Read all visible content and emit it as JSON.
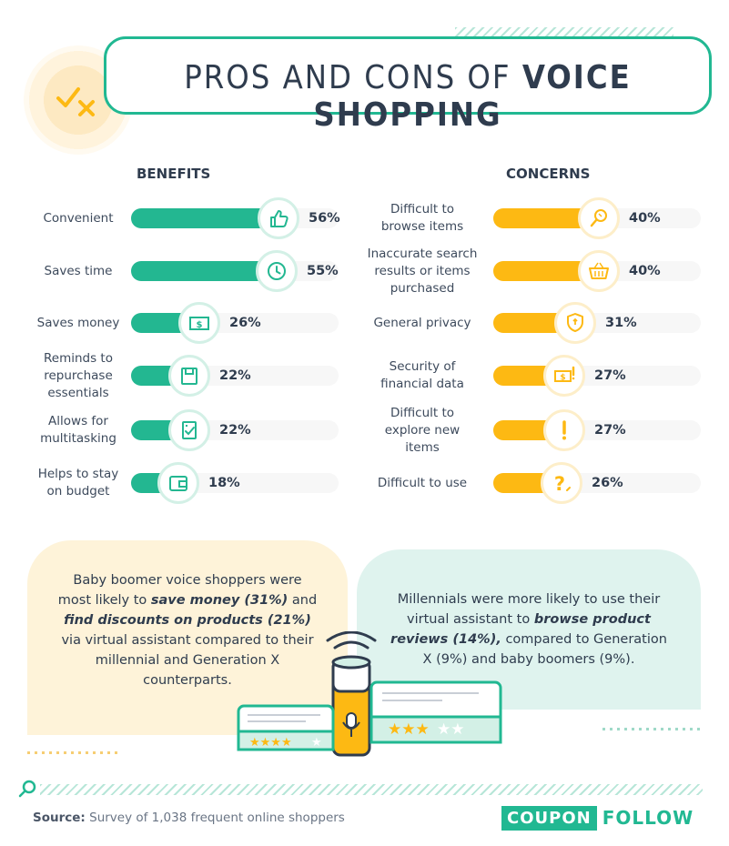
{
  "header": {
    "title_pre": "PROS AND CONS OF ",
    "title_bold": "VOICE SHOPPING"
  },
  "colors": {
    "benefit": "#23b791",
    "concern": "#fdb913",
    "text": "#2f3c4e"
  },
  "chart_data": [
    {
      "type": "bar",
      "title": "BENEFITS",
      "categories": [
        "Convenient",
        "Saves time",
        "Saves money",
        "Reminds to repurchase essentials",
        "Allows for multitasking",
        "Helps to stay on budget"
      ],
      "values": [
        56,
        55,
        26,
        22,
        22,
        18
      ],
      "value_labels": [
        "56%",
        "55%",
        "26%",
        "22%",
        "22%",
        "18%"
      ],
      "icons": [
        "thumbs-up-icon",
        "clock-icon",
        "money-icon",
        "bag-icon",
        "checklist-icon",
        "wallet-icon"
      ],
      "xlim": [
        0,
        100
      ]
    },
    {
      "type": "bar",
      "title": "CONCERNS",
      "categories": [
        "Difficult to browse items",
        "Inaccurate search results or items purchased",
        "General privacy",
        "Security of financial data",
        "Difficult to explore new items",
        "Difficult to use"
      ],
      "values": [
        40,
        40,
        31,
        27,
        27,
        26
      ],
      "value_labels": [
        "40%",
        "40%",
        "31%",
        "27%",
        "27%",
        "26%"
      ],
      "icons": [
        "magnifier-icon",
        "basket-icon",
        "shield-icon",
        "money-alert-icon",
        "exclamation-icon",
        "question-icon"
      ],
      "xlim": [
        0,
        100
      ]
    }
  ],
  "labels_lines": {
    "benefits": [
      [
        "Convenient"
      ],
      [
        "Saves time"
      ],
      [
        "Saves money"
      ],
      [
        "Reminds to",
        "repurchase",
        "essentials"
      ],
      [
        "Allows for",
        "multitasking"
      ],
      [
        "Helps to stay",
        "on budget"
      ]
    ],
    "concerns": [
      [
        "Difficult to",
        "browse items"
      ],
      [
        "Inaccurate search",
        "results or items",
        "purchased"
      ],
      [
        "General privacy"
      ],
      [
        "Security of",
        "financial data"
      ],
      [
        "Difficult to",
        "explore new",
        "items"
      ],
      [
        "Difficult to use"
      ]
    ]
  },
  "callouts": {
    "left": {
      "p1": "Baby boomer voice shoppers were most likely to ",
      "b1": "save money (31%)",
      "p2": " and ",
      "b2": "find discounts on products (21%)",
      "p3": " via virtual assistant compared to their millennial and Generation X counterparts."
    },
    "right": {
      "p1": "Millennials were more likely to use their virtual assistant to ",
      "b1": "browse product reviews (14%),",
      "p2": " compared to Generation X (9%) and baby boomers (9%)."
    }
  },
  "footer": {
    "source_label": "Source:",
    "source_text": " Survey of 1,038 frequent online shoppers",
    "logo_a": "COUPON",
    "logo_b": "FOLLOW"
  }
}
